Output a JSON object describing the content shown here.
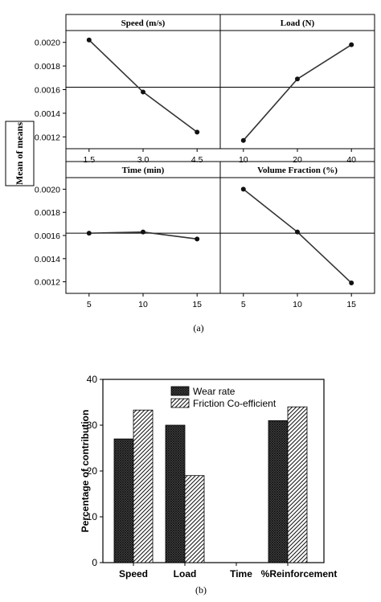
{
  "chart_data": [
    {
      "type": "line",
      "ylabel": "Mean of means",
      "ylim": [
        0.0011,
        0.0021
      ],
      "yticks": [
        "0.0012",
        "0.0014",
        "0.0016",
        "0.0018",
        "0.0020"
      ],
      "reference_line": 0.00162,
      "caption": "(a)",
      "panels": [
        {
          "title": "Speed (m/s)",
          "categories": [
            "1.5",
            "3.0",
            "4.5"
          ],
          "values": [
            0.00202,
            0.00158,
            0.00124
          ]
        },
        {
          "title": "Load (N)",
          "categories": [
            "10",
            "20",
            "40"
          ],
          "values": [
            0.00117,
            0.00169,
            0.00198
          ]
        },
        {
          "title": "Time (min)",
          "categories": [
            "5",
            "10",
            "15"
          ],
          "values": [
            0.00162,
            0.00163,
            0.00157
          ]
        },
        {
          "title": "Volume Fraction (%)",
          "categories": [
            "5",
            "10",
            "15"
          ],
          "values": [
            0.002,
            0.00163,
            0.00119
          ]
        }
      ]
    },
    {
      "type": "bar",
      "ylabel": "Percentage of contribution",
      "ylim": [
        0,
        40
      ],
      "yticks": [
        "0",
        "10",
        "20",
        "30",
        "40"
      ],
      "categories": [
        "Speed",
        "Load",
        "Time",
        "%Reinforcement"
      ],
      "series": [
        {
          "name": "Wear rate",
          "values": [
            27,
            30,
            0,
            31
          ],
          "fill": "cross-hatch-dark"
        },
        {
          "name": "Friction Co-efficient",
          "values": [
            33.3,
            19,
            0,
            34
          ],
          "fill": "diagonal-hatch"
        }
      ],
      "legend_position": "top-right",
      "caption": "(b)"
    }
  ]
}
